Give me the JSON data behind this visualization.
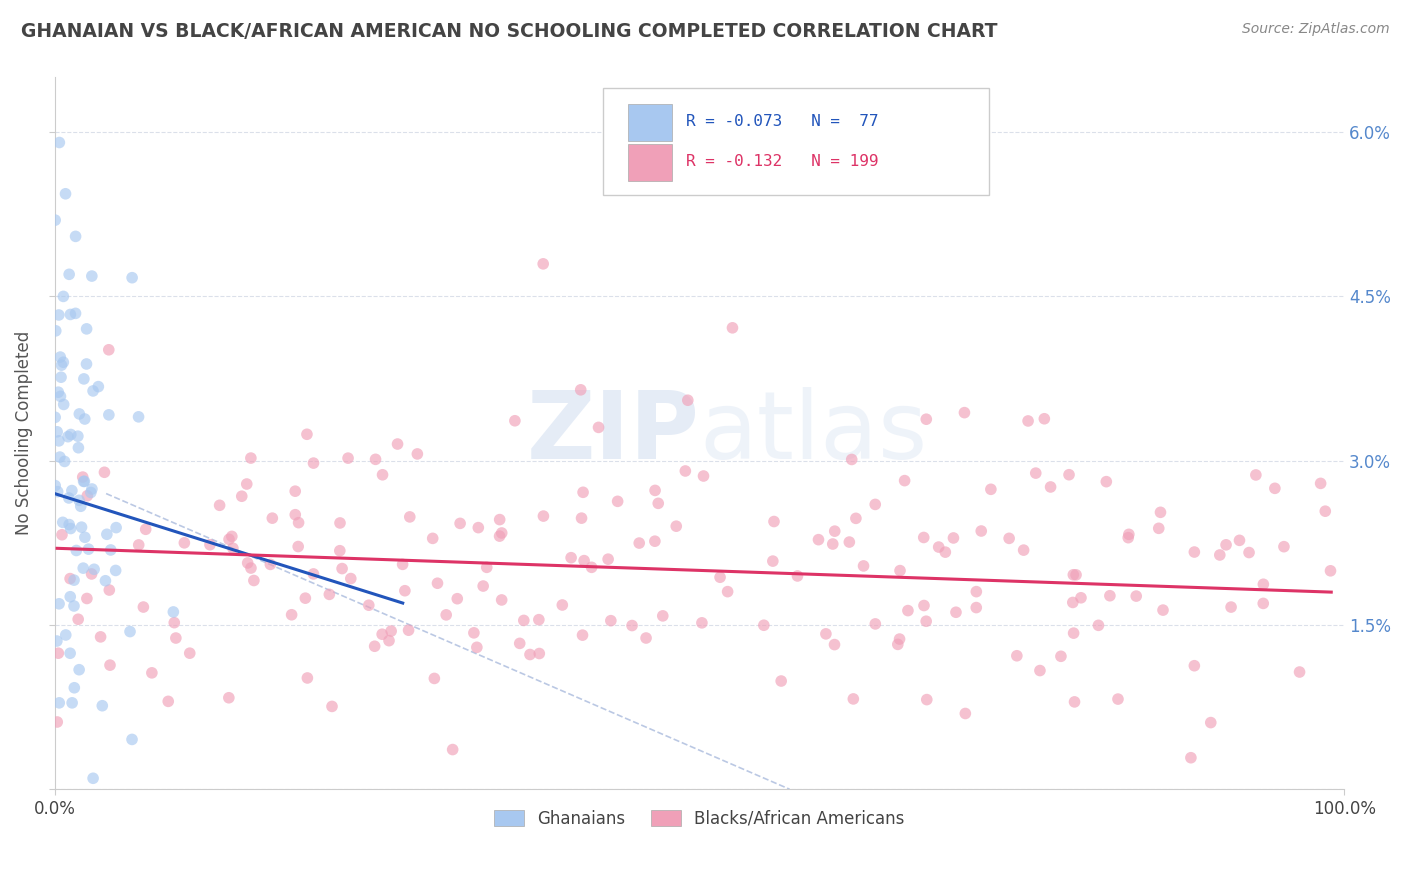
{
  "title": "GHANAIAN VS BLACK/AFRICAN AMERICAN NO SCHOOLING COMPLETED CORRELATION CHART",
  "source": "Source: ZipAtlas.com",
  "ylabel": "No Schooling Completed",
  "xlim": [
    0,
    1.0
  ],
  "ylim": [
    0,
    0.065
  ],
  "yticks": [
    0.0,
    0.015,
    0.03,
    0.045,
    0.06
  ],
  "ytick_labels_right": [
    "",
    "1.5%",
    "3.0%",
    "4.5%",
    "6.0%"
  ],
  "xtick_labels": [
    "0.0%",
    "100.0%"
  ],
  "legend_r1": "R = -0.073",
  "legend_n1": "N =  77",
  "legend_r2": "R = -0.132",
  "legend_n2": "N = 199",
  "legend_label1": "Ghanaians",
  "legend_label2": "Blacks/African Americans",
  "color_blue": "#a8c8f0",
  "color_pink": "#f0a0b8",
  "color_blue_line": "#2255bb",
  "color_pink_line": "#dd3366",
  "color_dashed": "#aabbdd",
  "watermark_color": "#d0ddf0",
  "tick_label_color": "#5588cc",
  "background_color": "#ffffff",
  "grid_color": "#d8dde8",
  "title_color": "#444444",
  "source_color": "#888888"
}
